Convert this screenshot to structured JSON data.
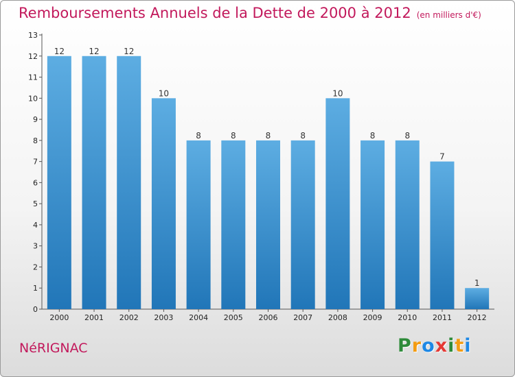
{
  "header": {
    "title": "Remboursements Annuels de la Dette de 2000 à 2012",
    "unit": "(en milliers d'€)"
  },
  "footer": {
    "commune": "NéRIGNAC",
    "brand_letters": [
      "P",
      "r",
      "o",
      "x",
      "i",
      "t",
      "i"
    ],
    "brand_colors": [
      "#2e8b3a",
      "#f39c12",
      "#1e88e5",
      "#e53935",
      "#2e8b3a",
      "#f39c12",
      "#1e88e5"
    ]
  },
  "colors": {
    "bar_top": "#5dade2",
    "bar_bottom": "#2176b8",
    "title": "#c2185b"
  },
  "chart_data": {
    "type": "bar",
    "categories": [
      "2000",
      "2001",
      "2002",
      "2003",
      "2004",
      "2005",
      "2006",
      "2007",
      "2008",
      "2009",
      "2010",
      "2011",
      "2012"
    ],
    "values": [
      12,
      12,
      12,
      10,
      8,
      8,
      8,
      8,
      10,
      8,
      8,
      7,
      1
    ],
    "ylim": [
      0,
      13
    ],
    "yticks": [
      0,
      1,
      2,
      3,
      4,
      5,
      6,
      7,
      8,
      9,
      10,
      11,
      12,
      13
    ],
    "grid": false
  }
}
